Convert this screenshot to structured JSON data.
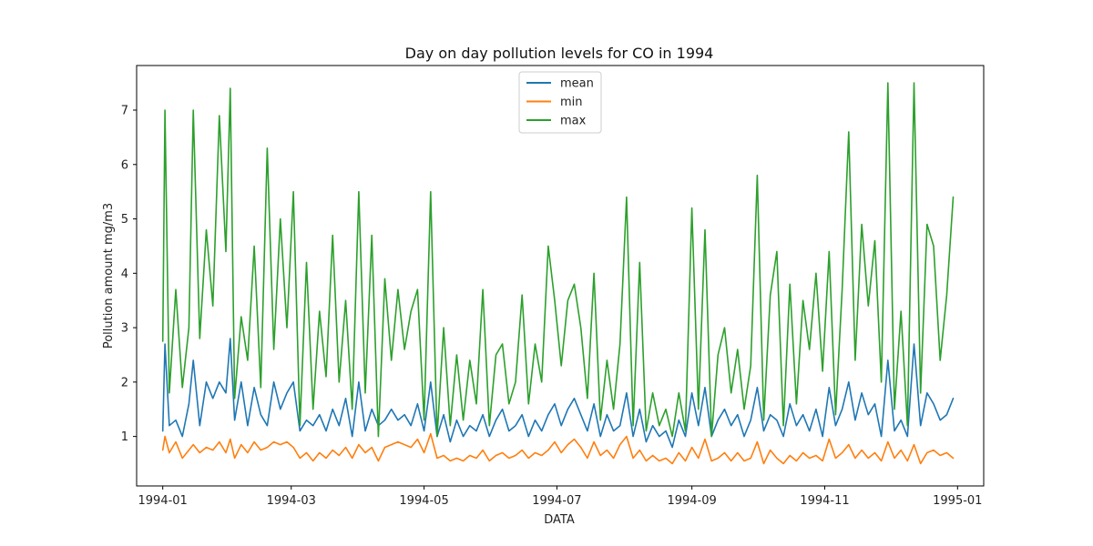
{
  "chart_data": {
    "type": "line",
    "title": "Day on day pollution levels for CO in 1994",
    "xlabel": "DATA",
    "ylabel": "Pollution amount mg/m3",
    "x_range": [
      "1993-12-20",
      "1995-01-13"
    ],
    "ylim": [
      0.09,
      7.82
    ],
    "x_ticks": [
      "1994-01-01",
      "1994-03-01",
      "1994-05-01",
      "1994-07-01",
      "1994-09-01",
      "1994-11-01",
      "1995-01-01"
    ],
    "x_tick_labels": [
      "1994-01",
      "1994-03",
      "1994-05",
      "1994-07",
      "1994-09",
      "1994-11",
      "1995-01"
    ],
    "y_ticks": [
      1,
      2,
      3,
      4,
      5,
      6,
      7
    ],
    "grid": false,
    "legend_position": "top-center",
    "series": [
      {
        "name": "mean",
        "color": "#1f77b4",
        "x": [
          "1994-01-01",
          "1994-01-02",
          "1994-01-04",
          "1994-01-07",
          "1994-01-10",
          "1994-01-13",
          "1994-01-15",
          "1994-01-18",
          "1994-01-21",
          "1994-01-24",
          "1994-01-27",
          "1994-01-30",
          "1994-02-01",
          "1994-02-03",
          "1994-02-06",
          "1994-02-09",
          "1994-02-12",
          "1994-02-15",
          "1994-02-18",
          "1994-02-21",
          "1994-02-24",
          "1994-02-27",
          "1994-03-02",
          "1994-03-05",
          "1994-03-08",
          "1994-03-11",
          "1994-03-14",
          "1994-03-17",
          "1994-03-20",
          "1994-03-23",
          "1994-03-26",
          "1994-03-29",
          "1994-04-01",
          "1994-04-04",
          "1994-04-07",
          "1994-04-10",
          "1994-04-13",
          "1994-04-16",
          "1994-04-19",
          "1994-04-22",
          "1994-04-25",
          "1994-04-28",
          "1994-05-01",
          "1994-05-04",
          "1994-05-07",
          "1994-05-10",
          "1994-05-13",
          "1994-05-16",
          "1994-05-19",
          "1994-05-22",
          "1994-05-25",
          "1994-05-28",
          "1994-05-31",
          "1994-06-03",
          "1994-06-06",
          "1994-06-09",
          "1994-06-12",
          "1994-06-15",
          "1994-06-18",
          "1994-06-21",
          "1994-06-24",
          "1994-06-27",
          "1994-06-30",
          "1994-07-03",
          "1994-07-06",
          "1994-07-09",
          "1994-07-12",
          "1994-07-15",
          "1994-07-18",
          "1994-07-21",
          "1994-07-24",
          "1994-07-27",
          "1994-07-30",
          "1994-08-02",
          "1994-08-05",
          "1994-08-08",
          "1994-08-11",
          "1994-08-14",
          "1994-08-17",
          "1994-08-20",
          "1994-08-23",
          "1994-08-26",
          "1994-08-29",
          "1994-09-01",
          "1994-09-04",
          "1994-09-07",
          "1994-09-10",
          "1994-09-13",
          "1994-09-16",
          "1994-09-19",
          "1994-09-22",
          "1994-09-25",
          "1994-09-28",
          "1994-10-01",
          "1994-10-04",
          "1994-10-07",
          "1994-10-10",
          "1994-10-13",
          "1994-10-16",
          "1994-10-19",
          "1994-10-22",
          "1994-10-25",
          "1994-10-28",
          "1994-10-31",
          "1994-11-03",
          "1994-11-06",
          "1994-11-09",
          "1994-11-12",
          "1994-11-15",
          "1994-11-18",
          "1994-11-21",
          "1994-11-24",
          "1994-11-27",
          "1994-11-30",
          "1994-12-03",
          "1994-12-06",
          "1994-12-09",
          "1994-12-12",
          "1994-12-15",
          "1994-12-18",
          "1994-12-21",
          "1994-12-24",
          "1994-12-27",
          "1994-12-30"
        ],
        "y": [
          1.1,
          2.7,
          1.2,
          1.3,
          1.0,
          1.6,
          2.4,
          1.2,
          2.0,
          1.7,
          2.0,
          1.8,
          2.8,
          1.3,
          2.0,
          1.2,
          1.9,
          1.4,
          1.2,
          2.0,
          1.5,
          1.8,
          2.0,
          1.1,
          1.3,
          1.2,
          1.4,
          1.1,
          1.5,
          1.2,
          1.7,
          1.0,
          2.0,
          1.1,
          1.5,
          1.2,
          1.3,
          1.5,
          1.3,
          1.4,
          1.2,
          1.6,
          1.1,
          2.0,
          1.0,
          1.4,
          0.9,
          1.3,
          1.0,
          1.2,
          1.1,
          1.4,
          1.0,
          1.3,
          1.5,
          1.1,
          1.2,
          1.4,
          1.0,
          1.3,
          1.1,
          1.4,
          1.6,
          1.2,
          1.5,
          1.7,
          1.4,
          1.1,
          1.6,
          1.0,
          1.4,
          1.1,
          1.2,
          1.8,
          1.0,
          1.5,
          0.9,
          1.2,
          1.0,
          1.1,
          0.8,
          1.3,
          1.0,
          1.8,
          1.2,
          1.9,
          1.0,
          1.3,
          1.5,
          1.2,
          1.4,
          1.0,
          1.3,
          1.9,
          1.1,
          1.4,
          1.3,
          1.0,
          1.6,
          1.2,
          1.4,
          1.1,
          1.5,
          1.0,
          1.9,
          1.2,
          1.5,
          2.0,
          1.3,
          1.8,
          1.4,
          1.6,
          1.0,
          2.4,
          1.1,
          1.3,
          1.0,
          2.7,
          1.2,
          1.8,
          1.6,
          1.3,
          1.4,
          1.7
        ]
      },
      {
        "name": "min",
        "color": "#ff7f0e",
        "x": [
          "1994-01-01",
          "1994-01-02",
          "1994-01-04",
          "1994-01-07",
          "1994-01-10",
          "1994-01-13",
          "1994-01-15",
          "1994-01-18",
          "1994-01-21",
          "1994-01-24",
          "1994-01-27",
          "1994-01-30",
          "1994-02-01",
          "1994-02-03",
          "1994-02-06",
          "1994-02-09",
          "1994-02-12",
          "1994-02-15",
          "1994-02-18",
          "1994-02-21",
          "1994-02-24",
          "1994-02-27",
          "1994-03-02",
          "1994-03-05",
          "1994-03-08",
          "1994-03-11",
          "1994-03-14",
          "1994-03-17",
          "1994-03-20",
          "1994-03-23",
          "1994-03-26",
          "1994-03-29",
          "1994-04-01",
          "1994-04-04",
          "1994-04-07",
          "1994-04-10",
          "1994-04-13",
          "1994-04-16",
          "1994-04-19",
          "1994-04-22",
          "1994-04-25",
          "1994-04-28",
          "1994-05-01",
          "1994-05-04",
          "1994-05-07",
          "1994-05-10",
          "1994-05-13",
          "1994-05-16",
          "1994-05-19",
          "1994-05-22",
          "1994-05-25",
          "1994-05-28",
          "1994-05-31",
          "1994-06-03",
          "1994-06-06",
          "1994-06-09",
          "1994-06-12",
          "1994-06-15",
          "1994-06-18",
          "1994-06-21",
          "1994-06-24",
          "1994-06-27",
          "1994-06-30",
          "1994-07-03",
          "1994-07-06",
          "1994-07-09",
          "1994-07-12",
          "1994-07-15",
          "1994-07-18",
          "1994-07-21",
          "1994-07-24",
          "1994-07-27",
          "1994-07-30",
          "1994-08-02",
          "1994-08-05",
          "1994-08-08",
          "1994-08-11",
          "1994-08-14",
          "1994-08-17",
          "1994-08-20",
          "1994-08-23",
          "1994-08-26",
          "1994-08-29",
          "1994-09-01",
          "1994-09-04",
          "1994-09-07",
          "1994-09-10",
          "1994-09-13",
          "1994-09-16",
          "1994-09-19",
          "1994-09-22",
          "1994-09-25",
          "1994-09-28",
          "1994-10-01",
          "1994-10-04",
          "1994-10-07",
          "1994-10-10",
          "1994-10-13",
          "1994-10-16",
          "1994-10-19",
          "1994-10-22",
          "1994-10-25",
          "1994-10-28",
          "1994-10-31",
          "1994-11-03",
          "1994-11-06",
          "1994-11-09",
          "1994-11-12",
          "1994-11-15",
          "1994-11-18",
          "1994-11-21",
          "1994-11-24",
          "1994-11-27",
          "1994-11-30",
          "1994-12-03",
          "1994-12-06",
          "1994-12-09",
          "1994-12-12",
          "1994-12-15",
          "1994-12-18",
          "1994-12-21",
          "1994-12-24",
          "1994-12-27",
          "1994-12-30"
        ],
        "y": [
          0.75,
          1.0,
          0.7,
          0.9,
          0.6,
          0.75,
          0.85,
          0.7,
          0.8,
          0.75,
          0.9,
          0.7,
          0.95,
          0.6,
          0.85,
          0.7,
          0.9,
          0.75,
          0.8,
          0.9,
          0.85,
          0.9,
          0.8,
          0.6,
          0.7,
          0.55,
          0.7,
          0.6,
          0.75,
          0.65,
          0.8,
          0.6,
          0.85,
          0.7,
          0.8,
          0.55,
          0.8,
          0.85,
          0.9,
          0.85,
          0.8,
          0.95,
          0.7,
          1.05,
          0.6,
          0.65,
          0.55,
          0.6,
          0.55,
          0.65,
          0.6,
          0.75,
          0.55,
          0.65,
          0.7,
          0.6,
          0.65,
          0.75,
          0.6,
          0.7,
          0.65,
          0.75,
          0.9,
          0.7,
          0.85,
          0.95,
          0.8,
          0.6,
          0.9,
          0.65,
          0.75,
          0.6,
          0.85,
          1.0,
          0.6,
          0.75,
          0.55,
          0.65,
          0.55,
          0.6,
          0.5,
          0.7,
          0.55,
          0.8,
          0.6,
          0.95,
          0.55,
          0.6,
          0.7,
          0.55,
          0.7,
          0.55,
          0.6,
          0.9,
          0.5,
          0.75,
          0.6,
          0.5,
          0.65,
          0.55,
          0.7,
          0.6,
          0.65,
          0.55,
          0.95,
          0.6,
          0.7,
          0.85,
          0.6,
          0.75,
          0.6,
          0.7,
          0.55,
          0.9,
          0.6,
          0.75,
          0.55,
          0.85,
          0.5,
          0.7,
          0.75,
          0.65,
          0.7,
          0.6
        ]
      },
      {
        "name": "max",
        "color": "#2ca02c",
        "x": [
          "1994-01-01",
          "1994-01-02",
          "1994-01-04",
          "1994-01-07",
          "1994-01-10",
          "1994-01-13",
          "1994-01-15",
          "1994-01-18",
          "1994-01-21",
          "1994-01-24",
          "1994-01-27",
          "1994-01-30",
          "1994-02-01",
          "1994-02-03",
          "1994-02-06",
          "1994-02-09",
          "1994-02-12",
          "1994-02-15",
          "1994-02-18",
          "1994-02-21",
          "1994-02-24",
          "1994-02-27",
          "1994-03-02",
          "1994-03-05",
          "1994-03-08",
          "1994-03-11",
          "1994-03-14",
          "1994-03-17",
          "1994-03-20",
          "1994-03-23",
          "1994-03-26",
          "1994-03-29",
          "1994-04-01",
          "1994-04-04",
          "1994-04-07",
          "1994-04-10",
          "1994-04-13",
          "1994-04-16",
          "1994-04-19",
          "1994-04-22",
          "1994-04-25",
          "1994-04-28",
          "1994-05-01",
          "1994-05-04",
          "1994-05-07",
          "1994-05-10",
          "1994-05-13",
          "1994-05-16",
          "1994-05-19",
          "1994-05-22",
          "1994-05-25",
          "1994-05-28",
          "1994-05-31",
          "1994-06-03",
          "1994-06-06",
          "1994-06-09",
          "1994-06-12",
          "1994-06-15",
          "1994-06-18",
          "1994-06-21",
          "1994-06-24",
          "1994-06-27",
          "1994-06-30",
          "1994-07-03",
          "1994-07-06",
          "1994-07-09",
          "1994-07-12",
          "1994-07-15",
          "1994-07-18",
          "1994-07-21",
          "1994-07-24",
          "1994-07-27",
          "1994-07-30",
          "1994-08-02",
          "1994-08-05",
          "1994-08-08",
          "1994-08-11",
          "1994-08-14",
          "1994-08-17",
          "1994-08-20",
          "1994-08-23",
          "1994-08-26",
          "1994-08-29",
          "1994-09-01",
          "1994-09-04",
          "1994-09-07",
          "1994-09-10",
          "1994-09-13",
          "1994-09-16",
          "1994-09-19",
          "1994-09-22",
          "1994-09-25",
          "1994-09-28",
          "1994-10-01",
          "1994-10-04",
          "1994-10-07",
          "1994-10-10",
          "1994-10-13",
          "1994-10-16",
          "1994-10-19",
          "1994-10-22",
          "1994-10-25",
          "1994-10-28",
          "1994-10-31",
          "1994-11-03",
          "1994-11-06",
          "1994-11-09",
          "1994-11-12",
          "1994-11-15",
          "1994-11-18",
          "1994-11-21",
          "1994-11-24",
          "1994-11-27",
          "1994-11-30",
          "1994-12-03",
          "1994-12-06",
          "1994-12-09",
          "1994-12-12",
          "1994-12-15",
          "1994-12-18",
          "1994-12-21",
          "1994-12-24",
          "1994-12-27",
          "1994-12-30"
        ],
        "y": [
          2.75,
          7.0,
          1.8,
          3.7,
          1.9,
          3.0,
          7.0,
          2.8,
          4.8,
          3.4,
          6.9,
          4.4,
          7.4,
          1.7,
          3.2,
          2.4,
          4.5,
          1.9,
          6.3,
          2.6,
          5.0,
          3.0,
          5.5,
          1.2,
          4.2,
          1.5,
          3.3,
          2.1,
          4.7,
          2.0,
          3.5,
          1.5,
          5.5,
          1.8,
          4.7,
          1.0,
          3.9,
          2.4,
          3.7,
          2.6,
          3.3,
          3.7,
          1.3,
          5.5,
          1.0,
          3.0,
          1.2,
          2.5,
          1.3,
          2.4,
          1.6,
          3.7,
          1.2,
          2.5,
          2.7,
          1.6,
          2.0,
          3.6,
          1.6,
          2.7,
          2.0,
          4.5,
          3.5,
          2.3,
          3.5,
          3.8,
          3.0,
          1.7,
          4.0,
          1.3,
          2.4,
          1.5,
          2.7,
          5.4,
          1.2,
          4.2,
          1.1,
          1.8,
          1.2,
          1.5,
          1.0,
          1.8,
          1.1,
          5.2,
          1.5,
          4.8,
          1.0,
          2.5,
          3.0,
          1.8,
          2.6,
          1.5,
          2.3,
          5.8,
          1.3,
          3.6,
          4.4,
          1.2,
          3.8,
          1.6,
          3.5,
          2.6,
          4.0,
          2.2,
          4.4,
          1.4,
          3.7,
          6.6,
          2.4,
          4.9,
          3.4,
          4.6,
          2.0,
          7.5,
          1.5,
          3.3,
          1.2,
          7.5,
          1.8,
          4.9,
          4.5,
          2.4,
          3.6,
          5.4
        ]
      }
    ]
  }
}
